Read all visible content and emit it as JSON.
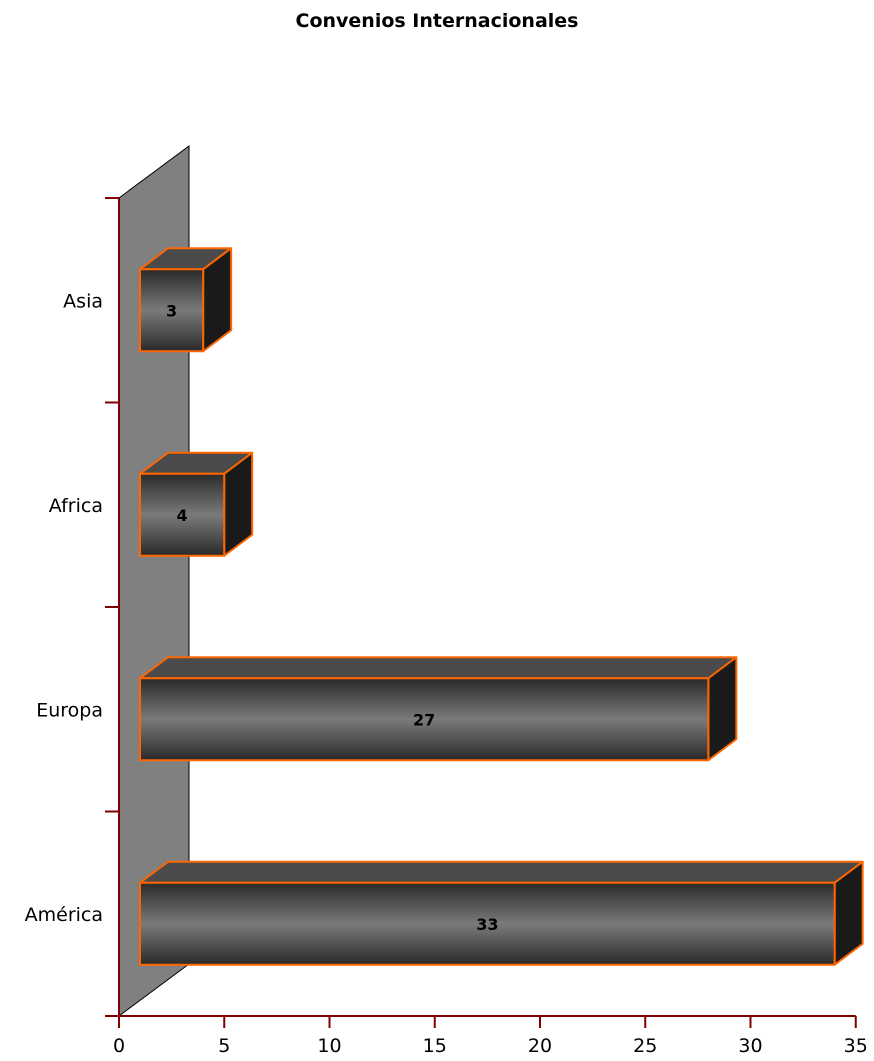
{
  "chart_data": {
    "type": "bar",
    "orientation": "horizontal",
    "title": "Convenios Internacionales",
    "categories": [
      "América",
      "Europa",
      "Africa",
      "Asia"
    ],
    "values": [
      33,
      27,
      4,
      3
    ],
    "data_labels": [
      "33",
      "27",
      "4",
      "3"
    ],
    "xlabel": "",
    "ylabel": "",
    "xlim": [
      0,
      35
    ],
    "xticks": [
      0,
      5,
      10,
      15,
      20,
      25,
      30,
      35
    ],
    "xtick_labels": [
      "0",
      "5",
      "10",
      "15",
      "20",
      "25",
      "30",
      "35"
    ],
    "grid": false,
    "legend": false,
    "style": "3d",
    "colors": {
      "bar_edge": "#ff6600",
      "bar_fill_light": "#7a7a7a",
      "bar_fill_dark": "#2a2a2a",
      "bar_top": "#4a4a4a",
      "bar_side": "#1a1a1a",
      "back_wall": "#808080",
      "axis": "#800000"
    }
  }
}
